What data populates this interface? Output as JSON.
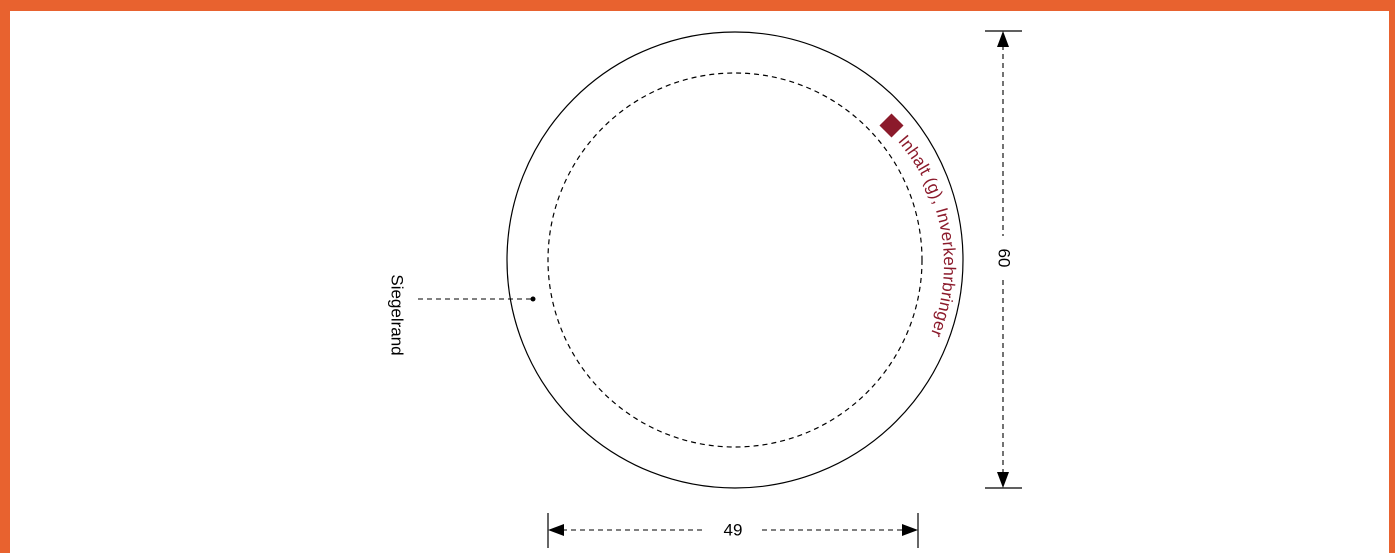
{
  "colors": {
    "frame": "#e8622f",
    "accent": "#8b1a2b",
    "line": "#000000"
  },
  "labels": {
    "seal_edge": "Siegelrand",
    "arc_text": "Inhalt (g), Inverkehrbringer",
    "dim_width": "49",
    "dim_height": "60"
  },
  "icons": {
    "marker": "diamond-marker-icon"
  }
}
